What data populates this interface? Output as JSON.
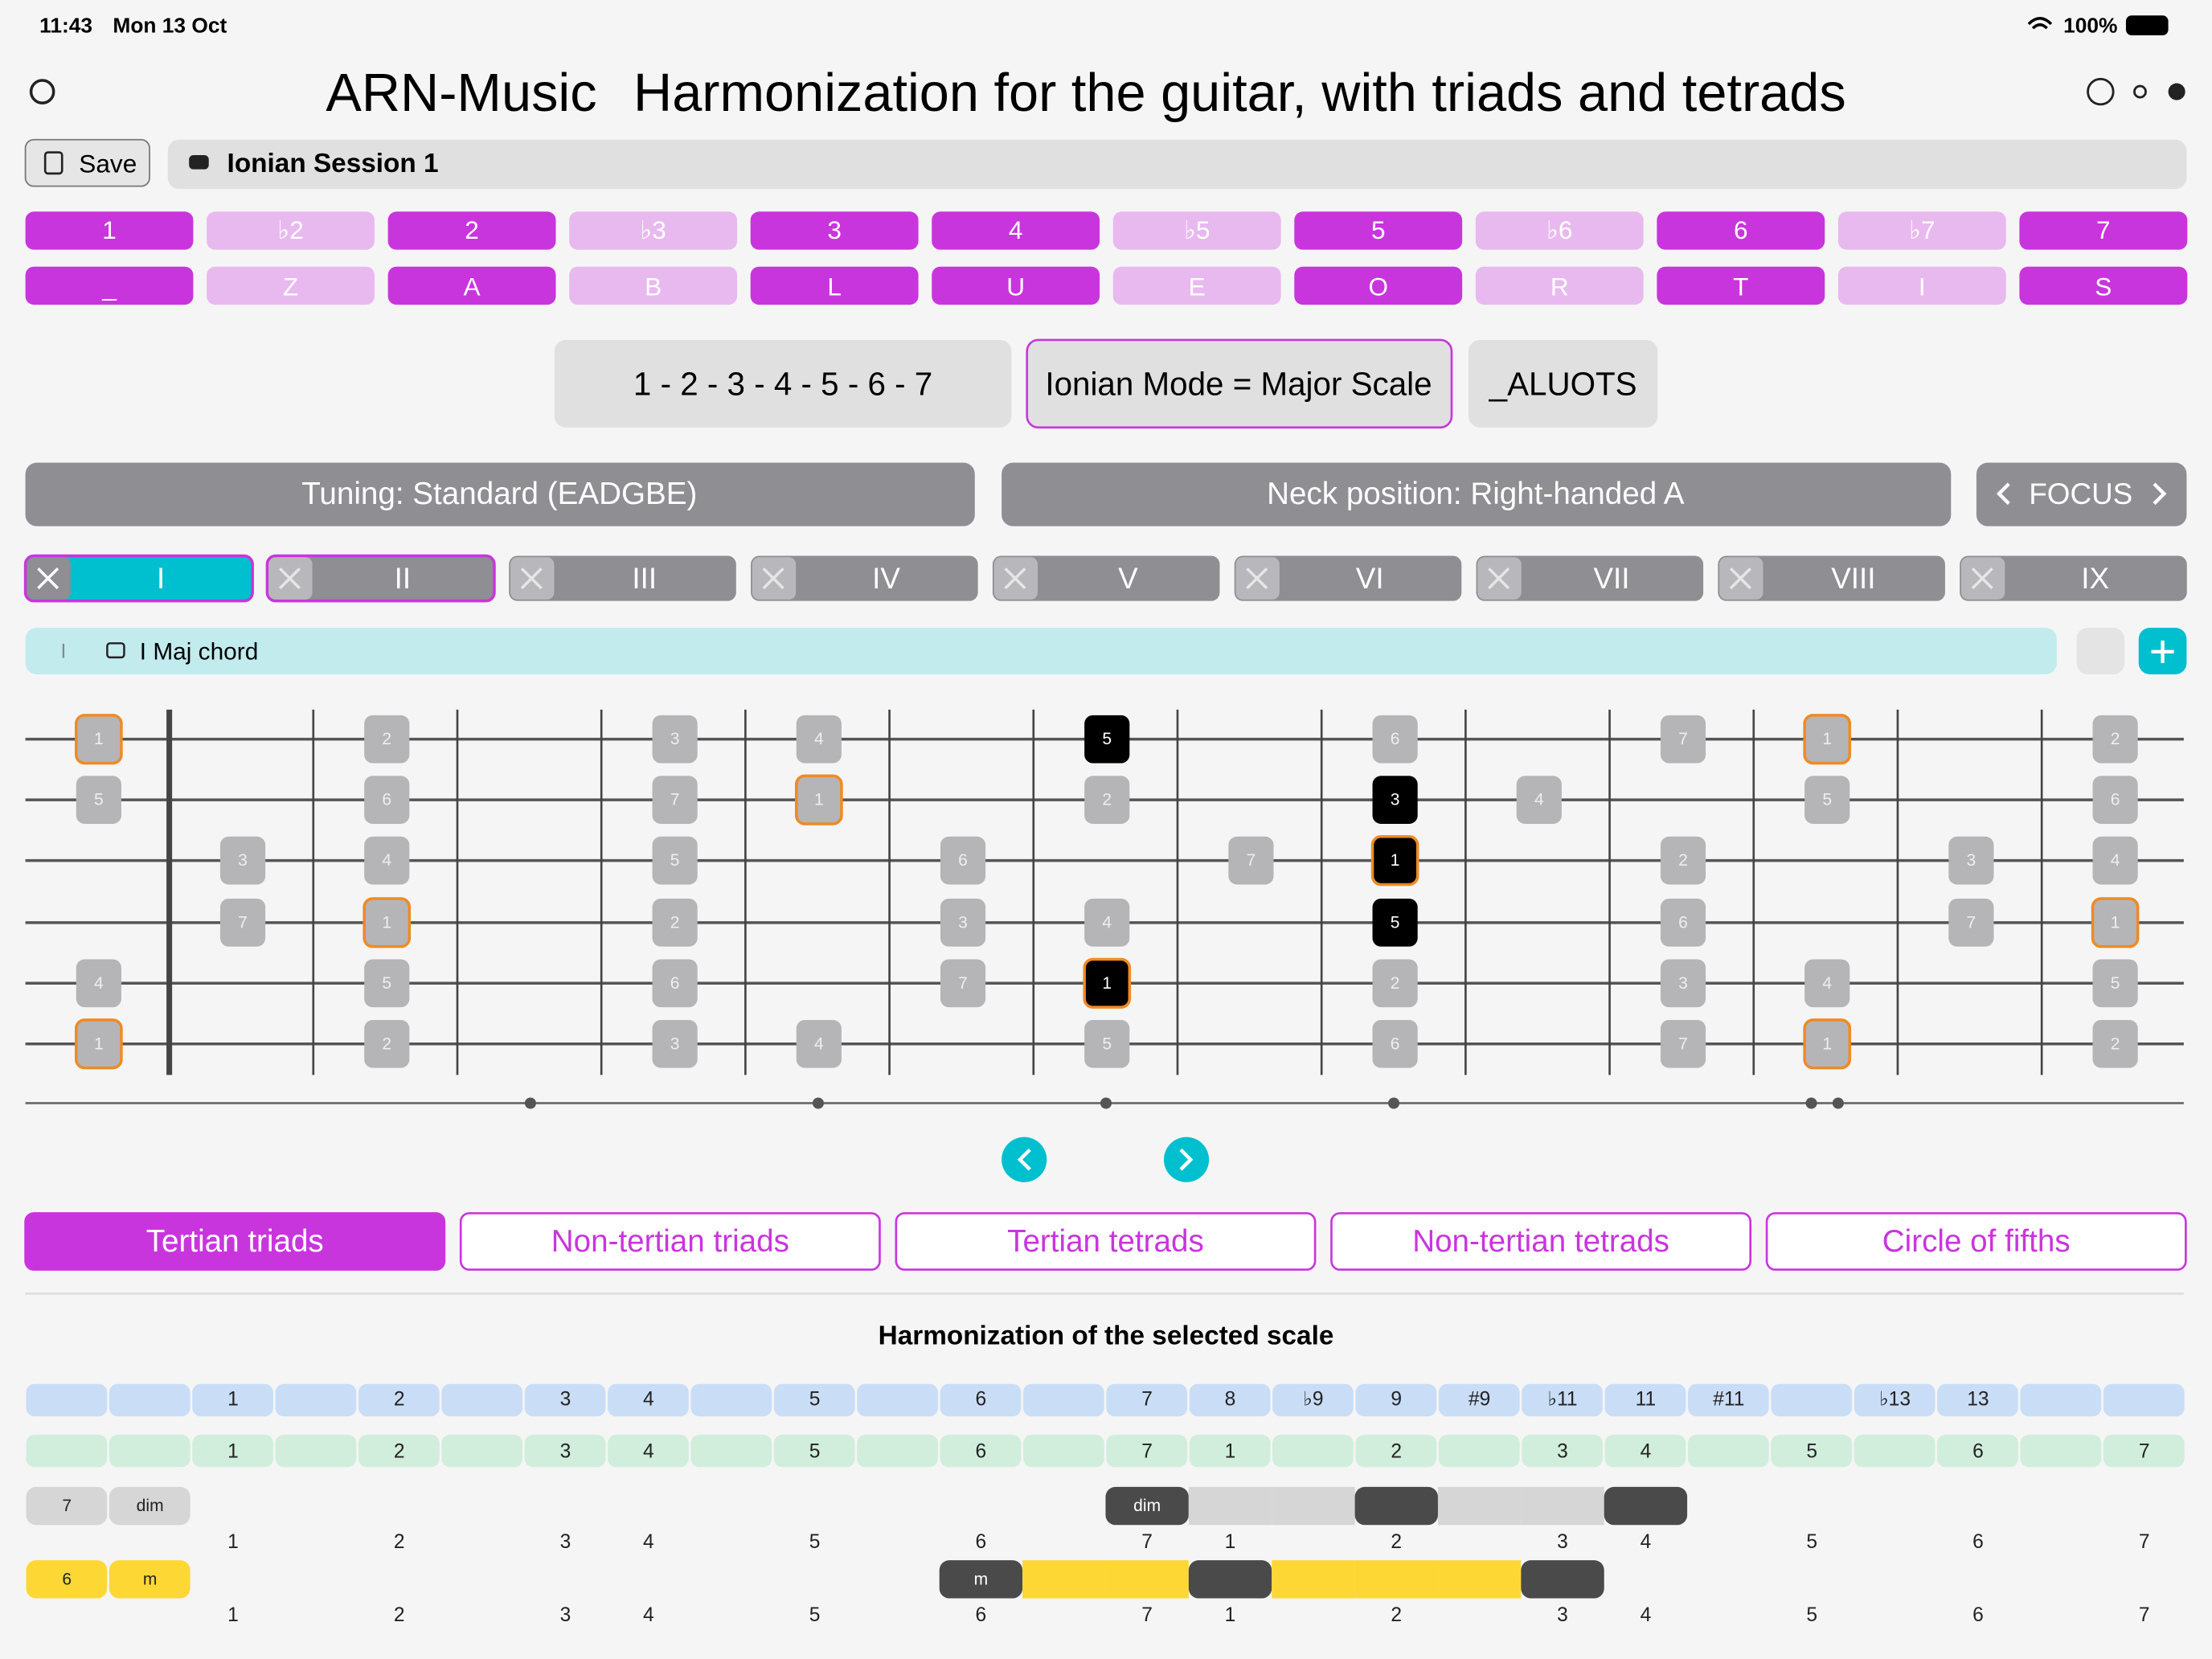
{
  "status": {
    "time": "11:43",
    "date": "Mon 13 Oct",
    "battery": "100%"
  },
  "header": {
    "app": "ARN-Music",
    "title": "Harmonization for the guitar, with triads and tetrads"
  },
  "session": {
    "save": "Save",
    "name": "Ionian Session 1"
  },
  "intervals": {
    "labels": [
      "1",
      "♭2",
      "2",
      "♭3",
      "3",
      "4",
      "♭5",
      "5",
      "♭6",
      "6",
      "♭7",
      "7"
    ],
    "letters": [
      "_",
      "Z",
      "A",
      "B",
      "L",
      "U",
      "E",
      "O",
      "R",
      "T",
      "I",
      "S"
    ],
    "active": [
      true,
      false,
      true,
      false,
      true,
      true,
      false,
      true,
      false,
      true,
      false,
      true
    ]
  },
  "scale": {
    "formula": "1 - 2 - 3 - 4 - 5 - 6 - 7",
    "mode": "Ionian Mode = Major Scale",
    "code": "_ALUOTS"
  },
  "controls": {
    "tuning": "Tuning: Standard (EADGBE)",
    "neck": "Neck position: Right-handed A",
    "focus": "FOCUS"
  },
  "degrees": [
    "I",
    "II",
    "III",
    "IV",
    "V",
    "VI",
    "VII",
    "VIII",
    "IX"
  ],
  "chord_bar": {
    "degree": "I",
    "name": "I Maj chord"
  },
  "fretboard": {
    "strings": [
      [
        {
          "label": "1",
          "style": "root"
        },
        null,
        {
          "label": "2"
        },
        null,
        {
          "label": "3"
        },
        {
          "label": "4"
        },
        null,
        {
          "label": "5",
          "style": "chord"
        },
        null,
        {
          "label": "6"
        },
        null,
        {
          "label": "7"
        },
        {
          "label": "1",
          "style": "root"
        },
        null,
        {
          "label": "2"
        }
      ],
      [
        {
          "label": "5"
        },
        null,
        {
          "label": "6"
        },
        null,
        {
          "label": "7"
        },
        {
          "label": "1",
          "style": "root"
        },
        null,
        {
          "label": "2"
        },
        null,
        {
          "label": "3",
          "style": "chord"
        },
        {
          "label": "4"
        },
        null,
        {
          "label": "5"
        },
        null,
        {
          "label": "6"
        }
      ],
      [
        null,
        {
          "label": "3"
        },
        {
          "label": "4"
        },
        null,
        {
          "label": "5"
        },
        null,
        {
          "label": "6"
        },
        null,
        {
          "label": "7"
        },
        {
          "label": "1",
          "style": "chord-root"
        },
        null,
        {
          "label": "2"
        },
        null,
        {
          "label": "3"
        },
        {
          "label": "4"
        }
      ],
      [
        null,
        {
          "label": "7"
        },
        {
          "label": "1",
          "style": "root"
        },
        null,
        {
          "label": "2"
        },
        null,
        {
          "label": "3"
        },
        {
          "label": "4"
        },
        null,
        {
          "label": "5",
          "style": "chord"
        },
        null,
        {
          "label": "6"
        },
        null,
        {
          "label": "7"
        },
        {
          "label": "1",
          "style": "root"
        }
      ],
      [
        {
          "label": "4"
        },
        null,
        {
          "label": "5"
        },
        null,
        {
          "label": "6"
        },
        null,
        {
          "label": "7"
        },
        {
          "label": "1",
          "style": "chord-root"
        },
        null,
        {
          "label": "2"
        },
        null,
        {
          "label": "3"
        },
        {
          "label": "4"
        },
        null,
        {
          "label": "5"
        }
      ],
      [
        {
          "label": "1",
          "style": "root"
        },
        null,
        {
          "label": "2"
        },
        null,
        {
          "label": "3"
        },
        {
          "label": "4"
        },
        null,
        {
          "label": "5"
        },
        null,
        {
          "label": "6"
        },
        null,
        {
          "label": "7"
        },
        {
          "label": "1",
          "style": "root"
        },
        null,
        {
          "label": "2"
        }
      ]
    ]
  },
  "tabs": [
    "Tertian triads",
    "Non-tertian triads",
    "Tertian tetrads",
    "Non-tertian tetrads",
    "Circle of fifths"
  ],
  "harmonization": {
    "heading": "Harmonization of the selected scale",
    "extensions": [
      null,
      null,
      "1",
      null,
      "2",
      null,
      "3",
      "4",
      null,
      "5",
      null,
      "6",
      null,
      "7",
      "8",
      "♭9",
      "9",
      "#9",
      "♭11",
      "11",
      "#11",
      null,
      "♭13",
      "13",
      null,
      null
    ],
    "degrees": [
      null,
      null,
      "1",
      null,
      "2",
      null,
      "3",
      "4",
      null,
      "5",
      null,
      "6",
      null,
      "7",
      "1",
      null,
      "2",
      null,
      "3",
      "4",
      null,
      "5",
      null,
      "6",
      null,
      "7"
    ],
    "chords": [
      {
        "labels": [
          "7",
          "dim"
        ],
        "color": "#d6d6d6",
        "styles": [
          null,
          null,
          null,
          null,
          null,
          null,
          null,
          null,
          null,
          null,
          null,
          null,
          null,
          "dark",
          "fill",
          "fill",
          "dark",
          "fill",
          "fill",
          "dark",
          null,
          null,
          null,
          null,
          null,
          null
        ],
        "cell_labels": [
          null,
          null,
          null,
          null,
          null,
          null,
          null,
          null,
          null,
          null,
          null,
          null,
          null,
          "dim",
          null,
          null,
          null,
          null,
          null,
          null,
          null,
          null,
          null,
          null,
          null,
          null
        ]
      },
      {
        "labels": [
          "6",
          "m"
        ],
        "color": "#fdd835",
        "styles": [
          null,
          null,
          null,
          null,
          null,
          null,
          null,
          null,
          null,
          null,
          null,
          "dark",
          "fill",
          "fill",
          "dark",
          "fill",
          "fill",
          "fill",
          "dark",
          null,
          null,
          null,
          null,
          null,
          null,
          null
        ],
        "cell_labels": [
          null,
          null,
          null,
          null,
          null,
          null,
          null,
          null,
          null,
          null,
          null,
          "m",
          null,
          null,
          null,
          null,
          null,
          null,
          null,
          null,
          null,
          null,
          null,
          null,
          null,
          null
        ]
      }
    ]
  }
}
